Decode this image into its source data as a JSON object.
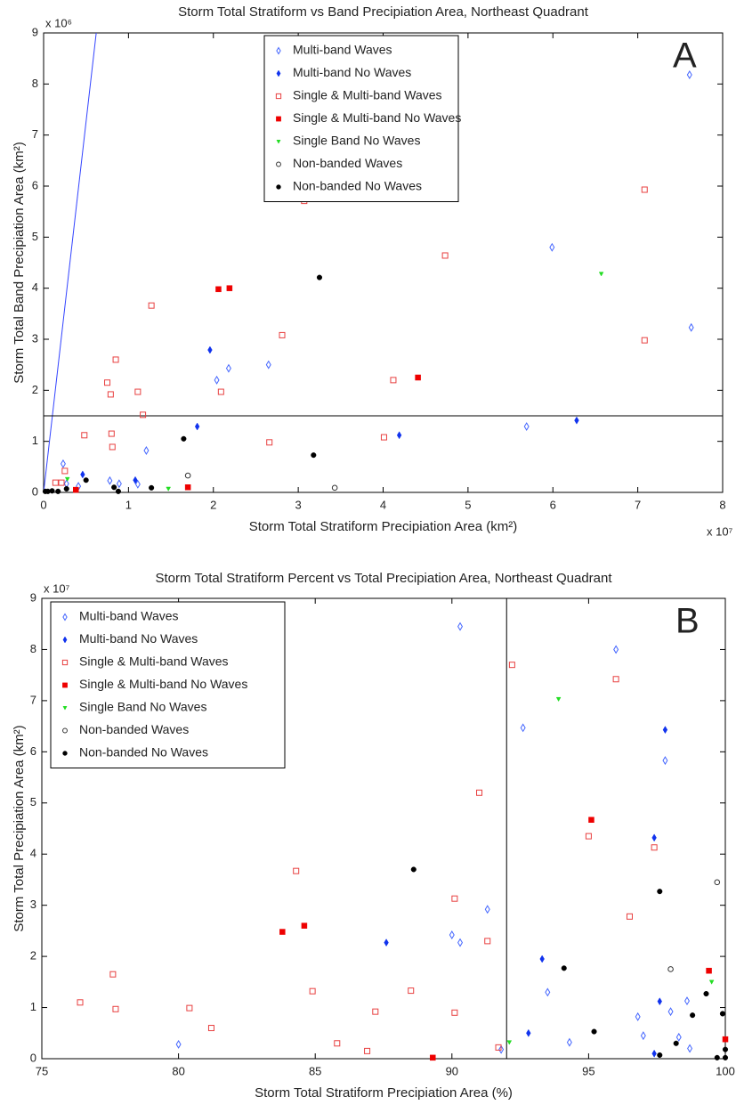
{
  "chart_data": [
    {
      "type": "scatter",
      "title": "Storm Total Stratiform vs Band Precipiation Area, Northeast Quadrant",
      "x_label": "Storm Total Stratiform Precipiation Area (km²)",
      "y_label": "Storm Total Band Precipiation Area (km²)",
      "x_exponent": "x 10⁷",
      "y_exponent": "x 10⁶",
      "panel_label": "A",
      "xlim": [
        0,
        8
      ],
      "ylim": [
        0,
        9
      ],
      "xticks": [
        0,
        1,
        2,
        3,
        4,
        5,
        6,
        7,
        8
      ],
      "yticks": [
        0,
        1,
        2,
        3,
        4,
        5,
        6,
        7,
        8,
        9
      ],
      "legend": "upper center",
      "lines": [
        {
          "x": [
            0,
            0.62
          ],
          "y": [
            0,
            9
          ],
          "color": "#3344ff"
        },
        {
          "x": [
            0,
            8
          ],
          "y": [
            1.5,
            1.5
          ],
          "color": "#000000"
        }
      ],
      "series": [
        {
          "name": "Multi-band Waves",
          "color": "#4466ff",
          "marker": "diamond-open",
          "x": [
            7.61,
            5.99,
            7.63,
            2.65,
            2.18,
            2.04,
            5.69,
            1.21,
            0.23,
            0.78,
            0.89,
            1.11,
            0.41,
            0.27
          ],
          "y": [
            8.18,
            4.8,
            3.23,
            2.5,
            2.43,
            2.2,
            1.29,
            0.82,
            0.56,
            0.23,
            0.17,
            0.16,
            0.12,
            0.17
          ]
        },
        {
          "name": "Multi-band No Waves",
          "color": "#1133ee",
          "marker": "diamond",
          "x": [
            1.96,
            1.81,
            6.28,
            4.19,
            0.46,
            1.08
          ],
          "y": [
            2.79,
            1.29,
            1.41,
            1.12,
            0.35,
            0.24
          ]
        },
        {
          "name": "Single & Multi-band Waves",
          "color": "#e84040",
          "marker": "square-open",
          "x": [
            3.07,
            4.73,
            7.08,
            7.08,
            1.27,
            2.81,
            0.85,
            0.75,
            0.79,
            1.11,
            2.09,
            4.12,
            1.17,
            0.48,
            0.8,
            0.81,
            2.66,
            4.01,
            0.25,
            0.14,
            0.21
          ],
          "y": [
            5.71,
            4.64,
            5.93,
            2.98,
            3.66,
            3.08,
            2.6,
            2.15,
            1.92,
            1.97,
            1.97,
            2.2,
            1.52,
            1.12,
            1.15,
            0.89,
            0.98,
            1.08,
            0.42,
            0.19,
            0.19
          ]
        },
        {
          "name": "Single & Multi-band No Waves",
          "color": "#ee0000",
          "marker": "square",
          "x": [
            2.06,
            2.19,
            4.41,
            1.7,
            0.38
          ],
          "y": [
            3.98,
            4.0,
            2.25,
            0.1,
            0.05
          ]
        },
        {
          "name": "Single Band No Waves",
          "color": "#22dd22",
          "marker": "triangle",
          "x": [
            6.57,
            1.47,
            0.28
          ],
          "y": [
            4.28,
            0.07,
            0.26
          ]
        },
        {
          "name": "Non-banded Waves",
          "color": "#333333",
          "marker": "circle-open",
          "x": [
            1.7,
            3.43
          ],
          "y": [
            0.33,
            0.09
          ]
        },
        {
          "name": "Non-banded No Waves",
          "color": "#000000",
          "marker": "circle",
          "x": [
            3.25,
            1.65,
            3.18,
            0.5,
            0.27,
            0.83,
            0.88,
            1.27,
            0.05,
            0.1,
            0.17,
            0.02
          ],
          "y": [
            4.21,
            1.05,
            0.73,
            0.24,
            0.07,
            0.1,
            0.02,
            0.09,
            0.02,
            0.03,
            0.02,
            0.02
          ]
        }
      ]
    },
    {
      "type": "scatter",
      "title": "Storm Total Stratiform Percent vs Total Precipiation Area, Northeast Quadrant",
      "x_label": "Storm Total Stratiform Precipiation Area (%)",
      "y_label": "Storm Total Precipiation Area (km²)",
      "y_exponent": "x 10⁷",
      "panel_label": "B",
      "xlim": [
        75,
        100
      ],
      "ylim": [
        0,
        9
      ],
      "xticks": [
        75,
        80,
        85,
        90,
        95,
        100
      ],
      "yticks": [
        0,
        1,
        2,
        3,
        4,
        5,
        6,
        7,
        8,
        9
      ],
      "legend": "upper left",
      "lines": [
        {
          "x": [
            92,
            92
          ],
          "y": [
            0,
            9
          ],
          "color": "#000000"
        }
      ],
      "series": [
        {
          "name": "Multi-band Waves",
          "color": "#4466ff",
          "marker": "diamond-open",
          "x": [
            90.3,
            96,
            92.6,
            97.8,
            91.3,
            90,
            90.3,
            93.5,
            98,
            98.6,
            96.8,
            97,
            98.3,
            98.7,
            94.3,
            91.8,
            80
          ],
          "y": [
            8.45,
            8.0,
            6.47,
            5.83,
            2.92,
            2.42,
            2.27,
            1.3,
            0.92,
            1.13,
            0.82,
            0.45,
            0.42,
            0.2,
            0.32,
            0.18,
            0.28
          ]
        },
        {
          "name": "Multi-band No Waves",
          "color": "#1133ee",
          "marker": "diamond",
          "x": [
            97.8,
            97.4,
            87.6,
            93.3,
            97.6,
            92.8,
            97.4
          ],
          "y": [
            6.43,
            4.32,
            2.27,
            1.95,
            1.12,
            0.5,
            0.1
          ]
        },
        {
          "name": "Single & Multi-band Waves",
          "color": "#e84040",
          "marker": "square-open",
          "x": [
            92.2,
            96,
            91,
            95,
            97.4,
            96.5,
            84.3,
            90.1,
            91.3,
            76.4,
            77.6,
            77.7,
            80.4,
            81.2,
            84.9,
            88.5,
            87.2,
            90.1,
            85.8,
            86.9,
            91.7
          ],
          "y": [
            7.7,
            7.42,
            5.2,
            4.35,
            4.13,
            2.78,
            3.67,
            3.13,
            2.3,
            1.1,
            1.65,
            0.97,
            0.99,
            0.6,
            1.32,
            1.33,
            0.92,
            0.9,
            0.3,
            0.15,
            0.22
          ]
        },
        {
          "name": "Single & Multi-band No Waves",
          "color": "#ee0000",
          "marker": "square",
          "x": [
            95.1,
            84.6,
            83.8,
            99.4,
            100,
            89.3
          ],
          "y": [
            4.67,
            2.6,
            2.48,
            1.72,
            0.38,
            0.02
          ]
        },
        {
          "name": "Single Band No Waves",
          "color": "#22dd22",
          "marker": "triangle",
          "x": [
            93.9,
            99.5,
            92.1
          ],
          "y": [
            7.03,
            1.5,
            0.32
          ]
        },
        {
          "name": "Non-banded Waves",
          "color": "#333333",
          "marker": "circle-open",
          "x": [
            99.7,
            98
          ],
          "y": [
            3.45,
            1.75
          ]
        },
        {
          "name": "Non-banded No Waves",
          "color": "#000000",
          "marker": "circle",
          "x": [
            88.6,
            97.6,
            94.1,
            99.3,
            95.2,
            98.2,
            98.8,
            99.9,
            100,
            97.6,
            99.7,
            100
          ],
          "y": [
            3.7,
            3.27,
            1.77,
            1.27,
            0.53,
            0.3,
            0.85,
            0.88,
            0.18,
            0.07,
            0.02,
            0.02
          ]
        }
      ]
    }
  ]
}
